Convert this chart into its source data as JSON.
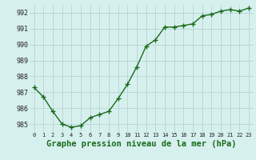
{
  "x": [
    0,
    1,
    2,
    3,
    4,
    5,
    6,
    7,
    8,
    9,
    10,
    11,
    12,
    13,
    14,
    15,
    16,
    17,
    18,
    19,
    20,
    21,
    22,
    23
  ],
  "y": [
    987.3,
    986.7,
    985.8,
    985.0,
    984.8,
    984.9,
    985.4,
    985.6,
    985.8,
    986.6,
    987.5,
    988.6,
    989.9,
    990.3,
    991.1,
    991.1,
    991.2,
    991.3,
    991.8,
    991.9,
    992.1,
    992.2,
    992.1,
    992.3
  ],
  "xlabel": "Graphe pression niveau de la mer (hPa)",
  "ylim": [
    984.5,
    992.5
  ],
  "xlim": [
    -0.5,
    23.5
  ],
  "yticks": [
    985,
    986,
    987,
    988,
    989,
    990,
    991,
    992
  ],
  "xtick_labels": [
    "0",
    "1",
    "2",
    "3",
    "4",
    "5",
    "6",
    "7",
    "8",
    "9",
    "10",
    "11",
    "12",
    "13",
    "14",
    "15",
    "16",
    "17",
    "18",
    "19",
    "20",
    "21",
    "22",
    "23"
  ],
  "line_color": "#1a6b1a",
  "marker_color": "#1a6b1a",
  "bg_color": "#d6f0ee",
  "grid_color": "#b0cece",
  "xlabel_color": "#1a6b1a",
  "xlabel_fontsize": 7.5,
  "ytick_fontsize": 6.0,
  "xtick_fontsize": 5.0
}
